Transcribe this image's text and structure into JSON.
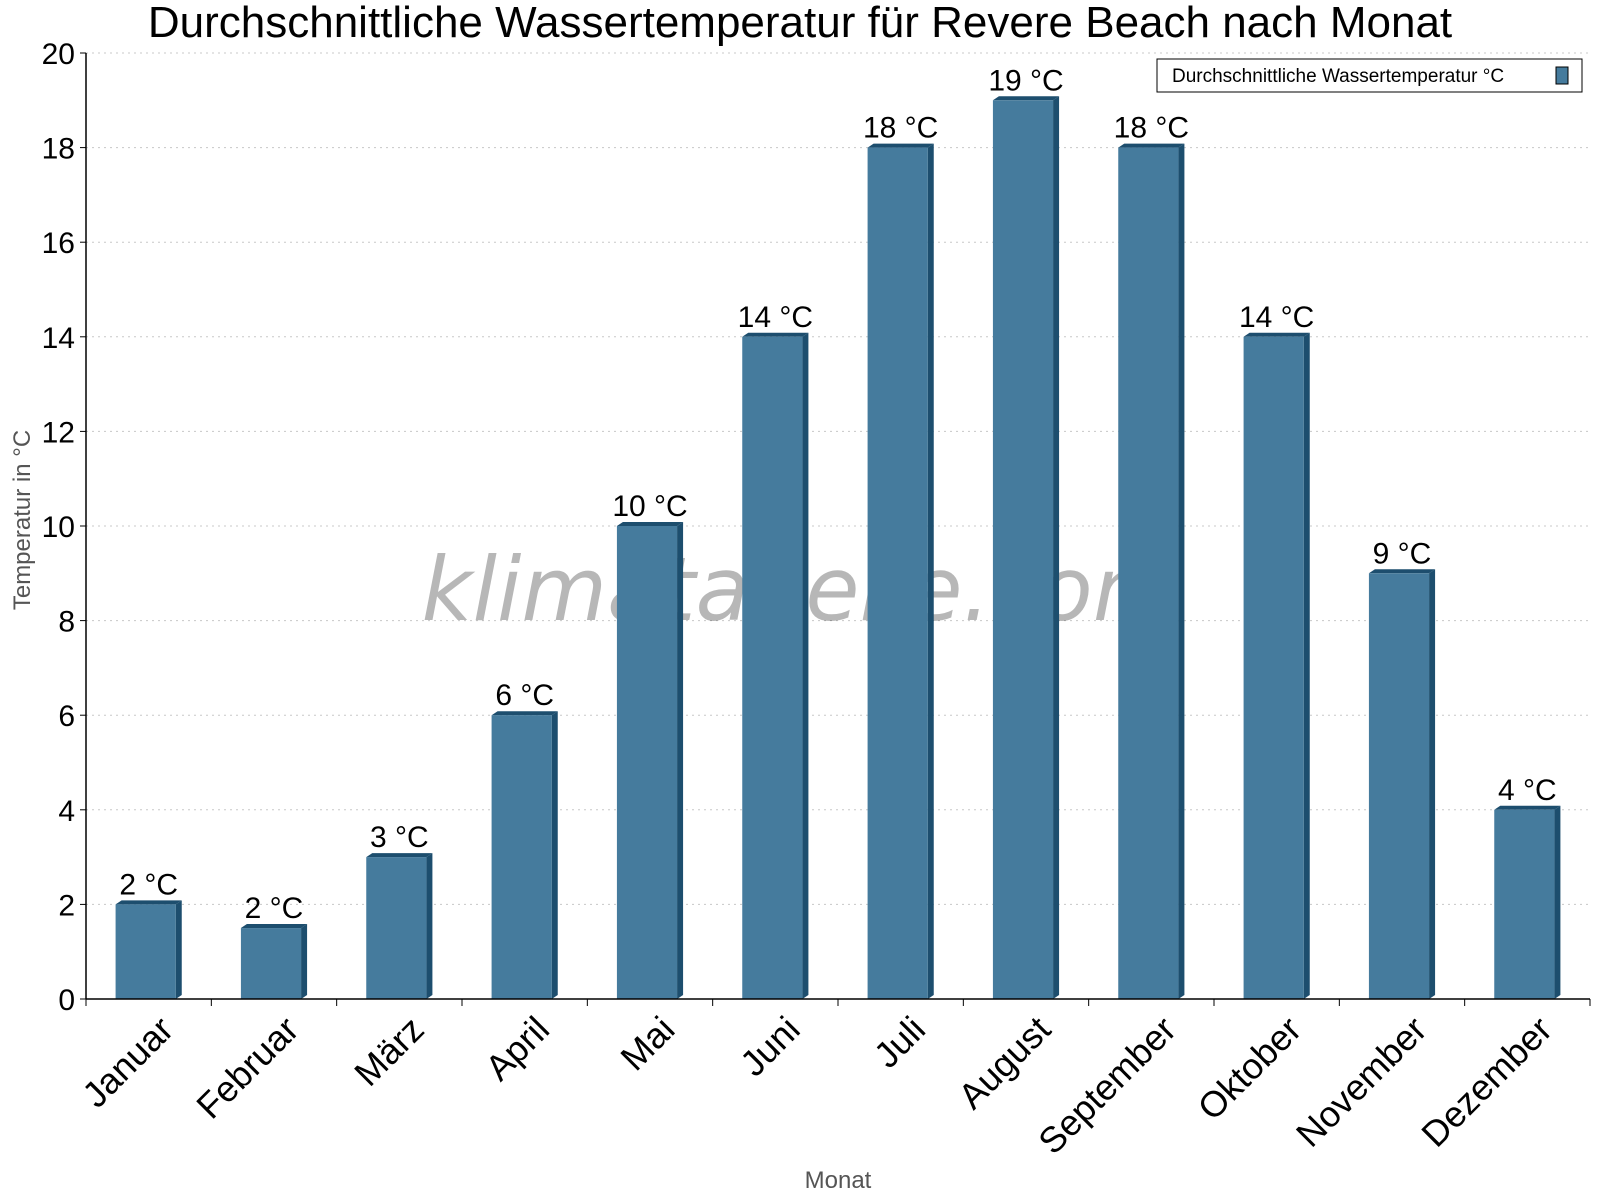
{
  "chart_data": {
    "type": "bar",
    "title": "Durchschnittliche Wassertemperatur für Revere Beach nach Monat",
    "xlabel": "Monat",
    "ylabel": "Temperatur in °C",
    "categories": [
      "Januar",
      "Februar",
      "März",
      "April",
      "Mai",
      "Juni",
      "Juli",
      "August",
      "September",
      "Oktober",
      "November",
      "Dezember"
    ],
    "series": [
      {
        "name": "Durchschnittliche Wassertemperatur °C",
        "values": [
          2,
          1.5,
          3,
          6,
          10,
          14,
          18,
          19,
          18,
          14,
          9,
          4
        ],
        "labels": [
          "2 °C",
          "2 °C",
          "3 °C",
          "6 °C",
          "10 °C",
          "14 °C",
          "18 °C",
          "19 °C",
          "18 °C",
          "14 °C",
          "9 °C",
          "4 °C"
        ]
      }
    ],
    "ylim": [
      0,
      20
    ],
    "yticks": [
      0,
      2,
      4,
      6,
      8,
      10,
      12,
      14,
      16,
      18,
      20
    ],
    "grid": true,
    "legend_position": "top-right",
    "colors": {
      "bar": "#457b9d",
      "bar_side": "#1d4e6e",
      "grid": "#c8c8c8"
    },
    "watermark": "klimatabelle.com"
  }
}
